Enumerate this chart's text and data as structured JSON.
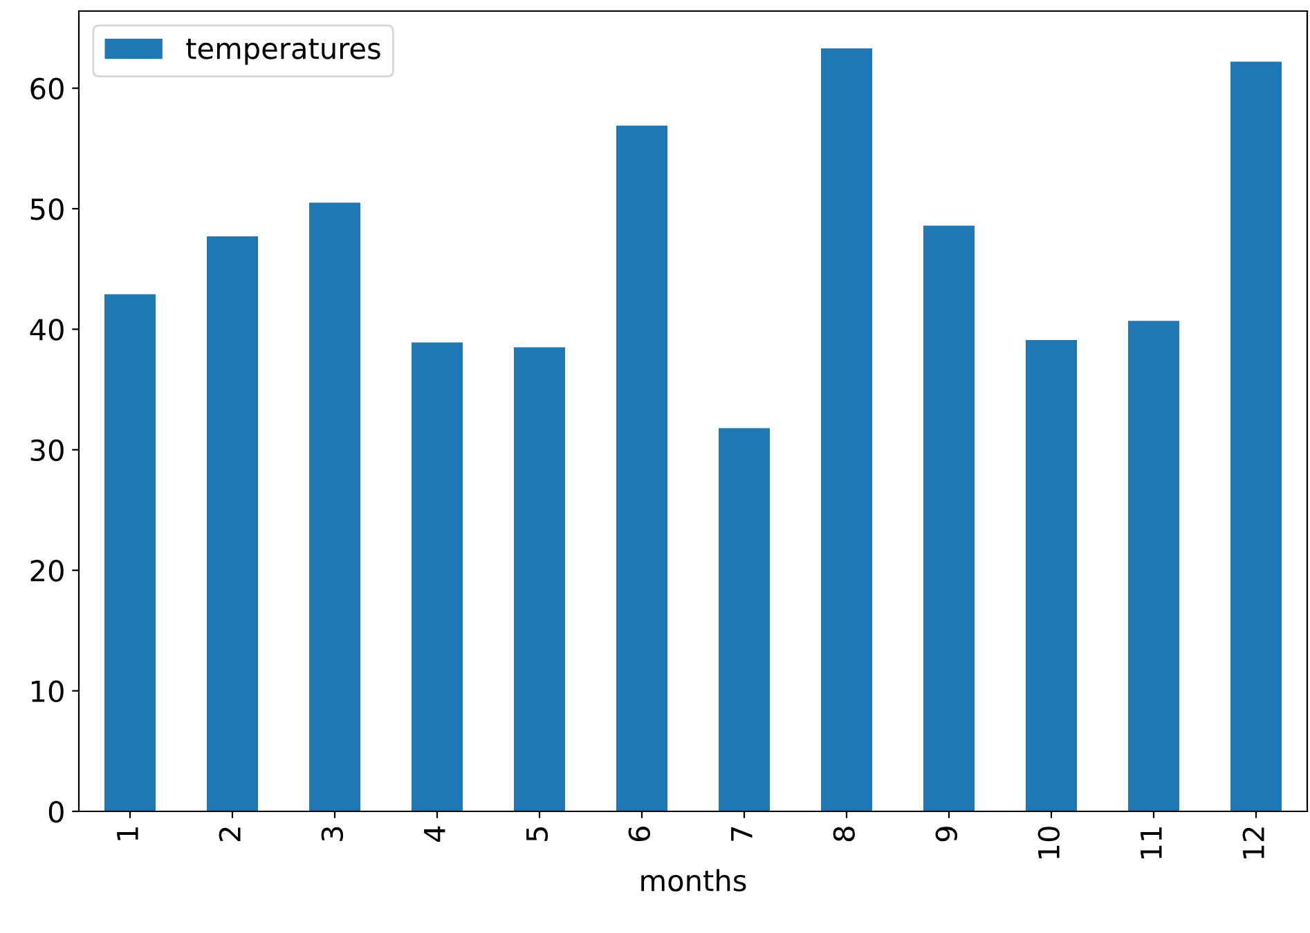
{
  "chart_data": {
    "type": "bar",
    "xlabel": "months",
    "categories": [
      "1",
      "2",
      "3",
      "4",
      "5",
      "6",
      "7",
      "8",
      "9",
      "10",
      "11",
      "12"
    ],
    "series": [
      {
        "name": "temperatures",
        "color": "#1f77b4",
        "values": [
          42.9,
          47.7,
          50.5,
          38.9,
          38.5,
          56.9,
          31.8,
          63.3,
          48.6,
          39.1,
          40.7,
          62.2
        ]
      }
    ],
    "ylim": [
      0,
      66.4
    ],
    "yticks": [
      0,
      10,
      20,
      30,
      40,
      50,
      60
    ],
    "legend": "top left",
    "grid": false
  }
}
